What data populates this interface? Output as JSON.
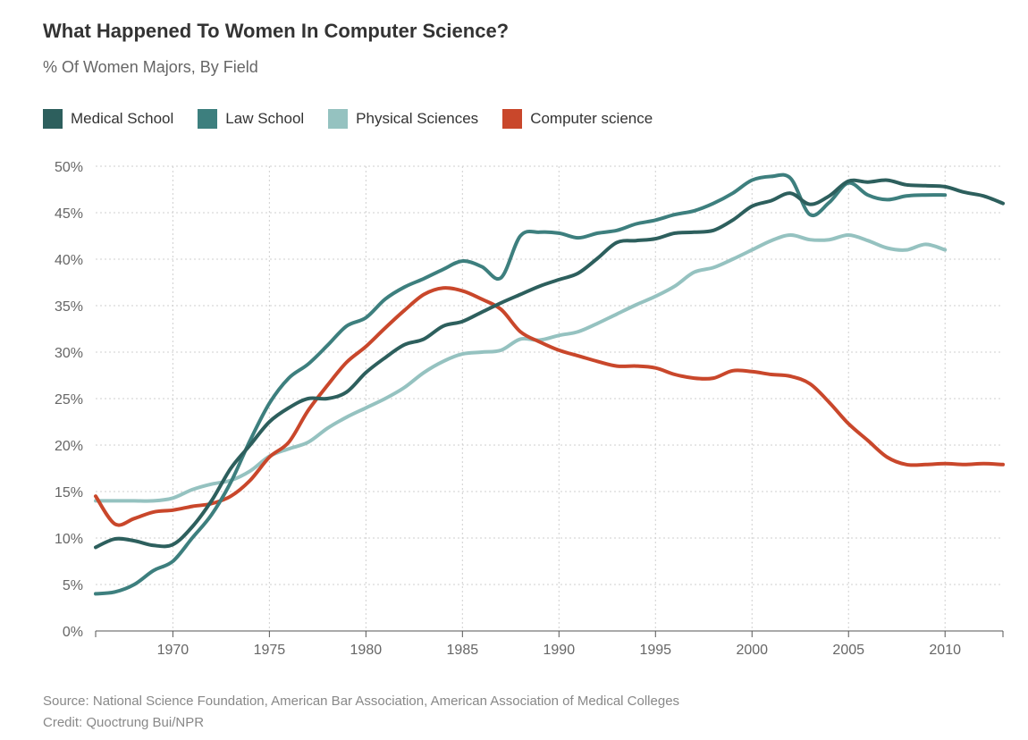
{
  "title": "What Happened To Women In Computer Science?",
  "subtitle": "% Of Women Majors, By Field",
  "source": "Source: National Science Foundation, American Bar Association, American Association of Medical Colleges",
  "credit": "Credit: Quoctrung Bui/NPR",
  "chart_data": {
    "type": "line",
    "title": "What Happened To Women In Computer Science?",
    "subtitle": "% Of Women Majors, By Field",
    "xlabel": "",
    "ylabel": "",
    "xlim": [
      1966,
      2013
    ],
    "ylim": [
      0,
      50
    ],
    "x_ticks": [
      1970,
      1975,
      1980,
      1985,
      1990,
      1995,
      2000,
      2005,
      2010
    ],
    "y_ticks": [
      0,
      5,
      10,
      15,
      20,
      25,
      30,
      35,
      40,
      45,
      50
    ],
    "y_tick_suffix": "%",
    "grid": true,
    "legend_position": "top-left",
    "series": [
      {
        "name": "Medical School",
        "color": "#2d5f5d",
        "x": [
          1966,
          1967,
          1968,
          1969,
          1970,
          1971,
          1972,
          1973,
          1974,
          1975,
          1976,
          1977,
          1978,
          1979,
          1980,
          1981,
          1982,
          1983,
          1984,
          1985,
          1986,
          1987,
          1988,
          1989,
          1990,
          1991,
          1992,
          1993,
          1994,
          1995,
          1996,
          1997,
          1998,
          1999,
          2000,
          2001,
          2002,
          2003,
          2004,
          2005,
          2006,
          2007,
          2008,
          2009,
          2010,
          2011,
          2012,
          2013
        ],
        "values": [
          9,
          9.9,
          9.7,
          9.2,
          9.3,
          11.2,
          14,
          17.5,
          20,
          22.5,
          24,
          25,
          25,
          25.7,
          27.8,
          29.4,
          30.8,
          31.4,
          32.8,
          33.3,
          34.3,
          35.3,
          36.2,
          37.1,
          37.8,
          38.5,
          40.1,
          41.8,
          42,
          42.2,
          42.8,
          42.9,
          43.1,
          44.2,
          45.7,
          46.3,
          47.1,
          45.9,
          46.8,
          48.4,
          48.3,
          48.5,
          48,
          47.9,
          47.8,
          47.2,
          46.8,
          46
        ]
      },
      {
        "name": "Law School",
        "color": "#3d7f7e",
        "x": [
          1966,
          1967,
          1968,
          1969,
          1970,
          1971,
          1972,
          1973,
          1974,
          1975,
          1976,
          1977,
          1978,
          1979,
          1980,
          1981,
          1982,
          1983,
          1984,
          1985,
          1986,
          1987,
          1988,
          1989,
          1990,
          1991,
          1992,
          1993,
          1994,
          1995,
          1996,
          1997,
          1998,
          1999,
          2000,
          2001,
          2002,
          2003,
          2004,
          2005,
          2006,
          2007,
          2008,
          2009,
          2010
        ],
        "values": [
          4,
          4.2,
          5,
          6.5,
          7.5,
          10,
          12.5,
          16,
          20.5,
          24.5,
          27.2,
          28.7,
          30.7,
          32.8,
          33.7,
          35.7,
          37,
          37.9,
          38.9,
          39.8,
          39.2,
          38,
          42.5,
          42.9,
          42.8,
          42.3,
          42.8,
          43.1,
          43.8,
          44.2,
          44.8,
          45.2,
          46,
          47.1,
          48.5,
          48.9,
          48.7,
          44.8,
          46.1,
          48.2,
          46.9,
          46.4,
          46.8,
          46.9,
          46.9
        ]
      },
      {
        "name": "Physical Sciences",
        "color": "#95c2c0",
        "x": [
          1966,
          1967,
          1968,
          1969,
          1970,
          1971,
          1972,
          1973,
          1974,
          1975,
          1976,
          1977,
          1978,
          1979,
          1980,
          1981,
          1982,
          1983,
          1984,
          1985,
          1986,
          1987,
          1988,
          1989,
          1990,
          1991,
          1992,
          1993,
          1994,
          1995,
          1996,
          1997,
          1998,
          1999,
          2000,
          2001,
          2002,
          2003,
          2004,
          2005,
          2006,
          2007,
          2008,
          2009,
          2010
        ],
        "values": [
          14,
          14,
          14,
          14,
          14.3,
          15.2,
          15.8,
          16.2,
          17.2,
          18.8,
          19.6,
          20.3,
          21.8,
          23,
          24,
          25,
          26.2,
          27.8,
          29,
          29.8,
          30,
          30.2,
          31.4,
          31.3,
          31.8,
          32.2,
          33.1,
          34.1,
          35.1,
          36,
          37.1,
          38.6,
          39.1,
          40,
          41,
          42,
          42.6,
          42.1,
          42.1,
          42.6,
          42,
          41.2,
          41,
          41.6,
          41
        ]
      },
      {
        "name": "Computer science",
        "color": "#c9472b",
        "x": [
          1966,
          1967,
          1968,
          1969,
          1970,
          1971,
          1972,
          1973,
          1974,
          1975,
          1976,
          1977,
          1978,
          1979,
          1980,
          1981,
          1982,
          1983,
          1984,
          1985,
          1986,
          1987,
          1988,
          1989,
          1990,
          1991,
          1992,
          1993,
          1994,
          1995,
          1996,
          1997,
          1998,
          1999,
          2000,
          2001,
          2002,
          2003,
          2004,
          2005,
          2006,
          2007,
          2008,
          2009,
          2010,
          2011,
          2012,
          2013
        ],
        "values": [
          14.5,
          11.5,
          12.1,
          12.8,
          13,
          13.4,
          13.7,
          14.5,
          16.2,
          18.7,
          20.3,
          23.7,
          26.4,
          28.9,
          30.6,
          32.6,
          34.5,
          36.2,
          36.9,
          36.6,
          35.7,
          34.6,
          32.2,
          31.1,
          30.2,
          29.6,
          29,
          28.5,
          28.5,
          28.3,
          27.6,
          27.2,
          27.2,
          28,
          27.9,
          27.6,
          27.4,
          26.6,
          24.6,
          22.3,
          20.5,
          18.7,
          17.9,
          17.9,
          18,
          17.9,
          18,
          17.9
        ]
      }
    ]
  }
}
